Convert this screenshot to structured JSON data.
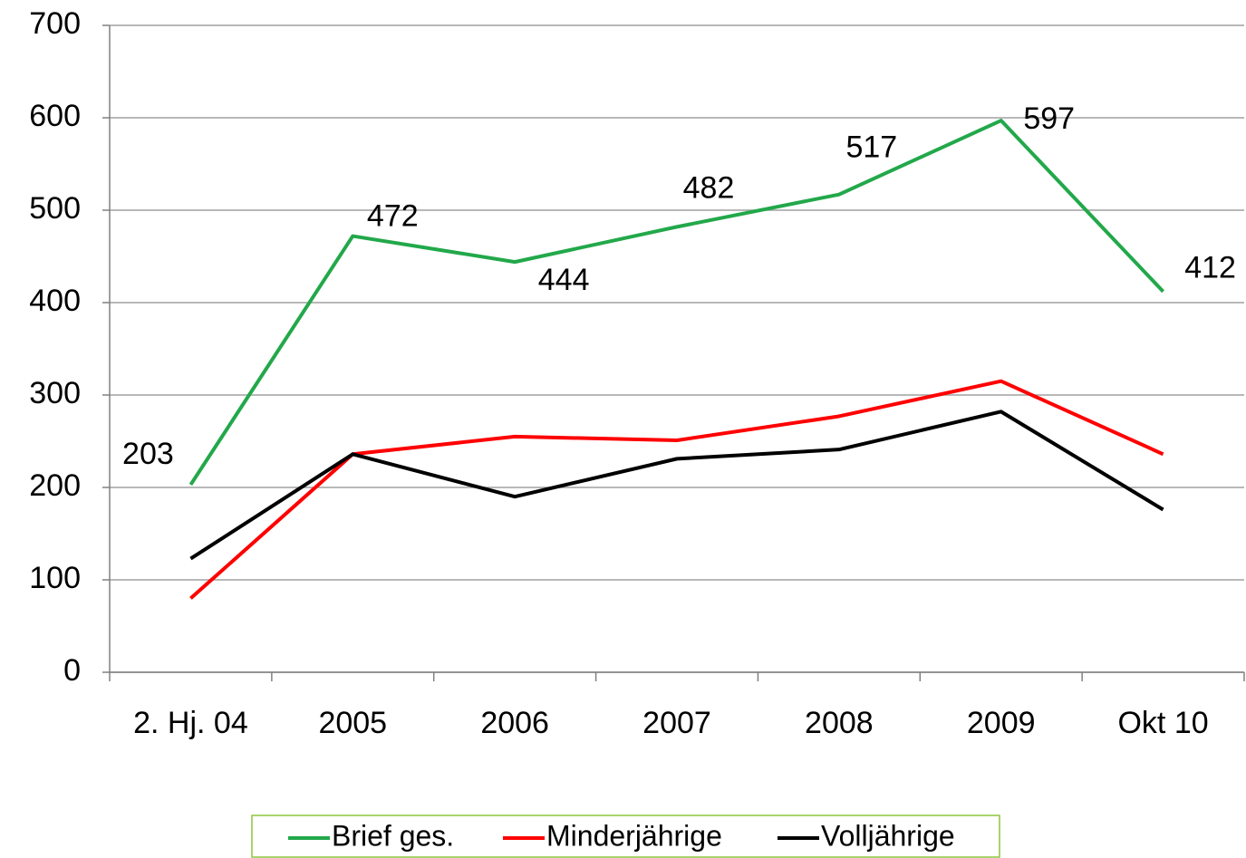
{
  "chart_data": {
    "type": "line",
    "categories": [
      "2. Hj. 04",
      "2005",
      "2006",
      "2007",
      "2008",
      "2009",
      "Okt 10"
    ],
    "series": [
      {
        "name": "Brief ges.",
        "color": "#22a84a",
        "values": [
          203,
          472,
          444,
          482,
          517,
          597,
          412
        ],
        "data_labels": true
      },
      {
        "name": "Minderjährige",
        "color": "#ff0000",
        "values": [
          80,
          236,
          255,
          251,
          277,
          315,
          236
        ]
      },
      {
        "name": "Volljährige",
        "color": "#000000",
        "values": [
          123,
          236,
          190,
          231,
          241,
          282,
          176
        ]
      }
    ],
    "ylim": [
      0,
      700
    ],
    "yticks": [
      0,
      100,
      200,
      300,
      400,
      500,
      600,
      700
    ],
    "grid": true,
    "legend": "bottom"
  }
}
